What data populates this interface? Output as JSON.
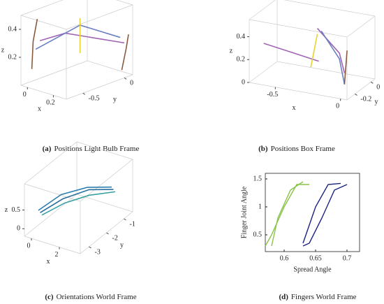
{
  "chart_data": [
    {
      "type": "line3d",
      "caption_label": "(a)",
      "caption": "Positions Light Bulb Frame",
      "xlabel": "x",
      "ylabel": "y",
      "zlabel": "z",
      "xlim": [
        -0.05,
        0.3
      ],
      "ylim": [
        -0.7,
        0.1
      ],
      "zlim": [
        0,
        0.5
      ],
      "xticks": [
        0,
        0.2
      ],
      "yticks": [
        -0.5,
        0
      ],
      "zticks": [
        0.2,
        0.4
      ],
      "series": [
        {
          "color": "#8b5a3c",
          "x": [
            -0.03,
            -0.02,
            -0.02
          ],
          "y": [
            -0.6,
            -0.6,
            -0.55
          ],
          "z": [
            0.1,
            0.3,
            0.45
          ]
        },
        {
          "color": "#a064b4",
          "x": [
            0,
            0.1,
            0.2,
            0.3
          ],
          "y": [
            -0.55,
            -0.4,
            -0.2,
            0.0
          ],
          "z": [
            0.3,
            0.35,
            0.3,
            0.25
          ]
        },
        {
          "color": "#6a7fc1",
          "x": [
            0,
            0.15,
            0.3
          ],
          "y": [
            -0.6,
            -0.3,
            -0.05
          ],
          "z": [
            0.25,
            0.4,
            0.3
          ]
        },
        {
          "color": "#e6d230",
          "x": [
            0.15,
            0.15
          ],
          "y": [
            -0.3,
            -0.3
          ],
          "z": [
            0.2,
            0.45
          ]
        },
        {
          "color": "#8b5a3c",
          "x": [
            0.28,
            0.3,
            0.3
          ],
          "y": [
            0.0,
            0.02,
            0.05
          ],
          "z": [
            0.05,
            0.2,
            0.3
          ]
        }
      ]
    },
    {
      "type": "line3d",
      "caption_label": "(b)",
      "caption": "Positions Box Frame",
      "xlabel": "x",
      "ylabel": "y",
      "zlabel": "z",
      "xlim": [
        -0.7,
        0.05
      ],
      "ylim": [
        -0.3,
        0.05
      ],
      "zlim": [
        0,
        0.55
      ],
      "xticks": [
        -0.5,
        0
      ],
      "yticks": [
        -0.2,
        0
      ],
      "zticks": [
        0,
        0.2,
        0.4
      ],
      "series": [
        {
          "color": "#a064b4",
          "x": [
            -0.65,
            -0.5,
            -0.35
          ],
          "y": [
            -0.2,
            -0.1,
            0.0
          ],
          "z": [
            0.3,
            0.2,
            0.1
          ]
        },
        {
          "color": "#e6d230",
          "x": [
            -0.35,
            -0.3
          ],
          "y": [
            -0.1,
            -0.1
          ],
          "z": [
            0.1,
            0.4
          ]
        },
        {
          "color": "#a064b4",
          "x": [
            -0.3,
            -0.1,
            0.0
          ],
          "y": [
            -0.1,
            -0.15,
            -0.25
          ],
          "z": [
            0.45,
            0.3,
            0.2
          ]
        },
        {
          "color": "#6a7fc1",
          "x": [
            -0.3,
            -0.1,
            0.0
          ],
          "y": [
            -0.05,
            -0.15,
            -0.25
          ],
          "z": [
            0.4,
            0.25,
            0.1
          ]
        },
        {
          "color": "#8b5a3c",
          "x": [
            0.0,
            0.02
          ],
          "y": [
            -0.25,
            -0.25
          ],
          "z": [
            0.1,
            0.4
          ]
        }
      ]
    },
    {
      "type": "line3d",
      "caption_label": "(c)",
      "caption": "Orientations World Frame",
      "xlabel": "x",
      "ylabel": "y",
      "zlabel": "z",
      "xlim": [
        -0.5,
        3.5
      ],
      "ylim": [
        -3.5,
        -0.5
      ],
      "zlim": [
        -0.2,
        1.2
      ],
      "xticks": [
        0,
        2
      ],
      "yticks": [
        -3,
        -2,
        -1
      ],
      "zticks": [
        0,
        0.5
      ],
      "series": [
        {
          "color": "#2a6f9e",
          "x": [
            0,
            1,
            2,
            3
          ],
          "y": [
            -3,
            -2.5,
            -1.8,
            -1.2
          ],
          "z": [
            0.3,
            0.6,
            0.7,
            0.6
          ]
        },
        {
          "color": "#2f7fae",
          "x": [
            0,
            1,
            2,
            3
          ],
          "y": [
            -3.1,
            -2.6,
            -1.9,
            -1.3
          ],
          "z": [
            0.4,
            0.75,
            0.8,
            0.7
          ]
        },
        {
          "color": "#3aa0a0",
          "x": [
            0,
            1,
            2,
            3
          ],
          "y": [
            -2.9,
            -2.4,
            -1.8,
            -1.1
          ],
          "z": [
            0.2,
            0.45,
            0.55,
            0.5
          ]
        }
      ]
    },
    {
      "type": "line",
      "caption_label": "(d)",
      "caption": "Fingers World Frame",
      "xlabel": "Spread Angle",
      "ylabel": "Finger Joint Angle",
      "xlim": [
        0.57,
        0.72
      ],
      "ylim": [
        0.2,
        1.6
      ],
      "xticks": [
        0.6,
        0.65,
        0.7
      ],
      "yticks": [
        0.5,
        1,
        1.5
      ],
      "series": [
        {
          "color": "#8bc34a",
          "x": [
            0.57,
            0.58,
            0.6,
            0.62,
            0.64
          ],
          "y": [
            0.3,
            0.5,
            1.0,
            1.4,
            1.4
          ]
        },
        {
          "color": "#8bc34a",
          "x": [
            0.58,
            0.59,
            0.61,
            0.63
          ],
          "y": [
            0.3,
            0.8,
            1.3,
            1.45
          ]
        },
        {
          "color": "#1a237e",
          "x": [
            0.63,
            0.64,
            0.66,
            0.68,
            0.7
          ],
          "y": [
            0.3,
            0.35,
            0.8,
            1.3,
            1.4
          ]
        },
        {
          "color": "#1a237e",
          "x": [
            0.63,
            0.65,
            0.67,
            0.69
          ],
          "y": [
            0.35,
            1.0,
            1.4,
            1.42
          ]
        }
      ]
    }
  ]
}
